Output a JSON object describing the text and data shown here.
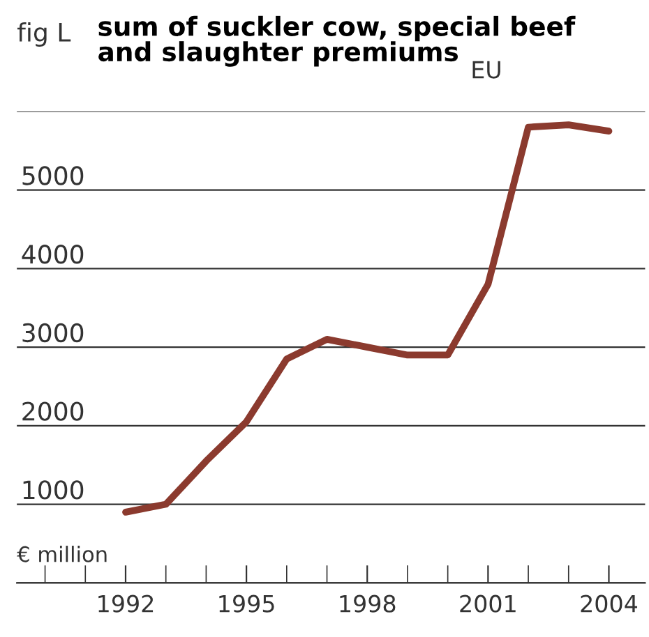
{
  "chart_data": {
    "type": "line",
    "title": "sum of suckler cow, special beef\nand slaughter premiums",
    "subtitle": "EU",
    "ylabel": "€ million",
    "annotations": [
      "fig L"
    ],
    "x": [
      1992,
      1993,
      1994,
      1995,
      1996,
      1997,
      1998,
      1999,
      2000,
      2001,
      2002,
      2003,
      2004
    ],
    "series": [
      {
        "color": "#8b3a2e",
        "values": [
          900,
          1000,
          1550,
          2050,
          2850,
          3100,
          3000,
          2900,
          2900,
          3800,
          5800,
          5830,
          5750
        ]
      }
    ],
    "xlim": [
      1989.3,
      2004.9
    ],
    "xticks": [
      {
        "value": 1990,
        "label": null
      },
      {
        "value": 1991,
        "label": null
      },
      1992,
      {
        "value": 1993,
        "label": null
      },
      {
        "value": 1994,
        "label": null
      },
      1995,
      {
        "value": 1996,
        "label": null
      },
      {
        "value": 1997,
        "label": null
      },
      1998,
      {
        "value": 1999,
        "label": null
      },
      {
        "value": 2000,
        "label": null
      },
      2001,
      {
        "value": 2002,
        "label": null
      },
      {
        "value": 2003,
        "label": null
      },
      2004
    ],
    "ylim": [
      0,
      6000
    ],
    "yticks": [
      {
        "value": 0,
        "label": null
      },
      1000,
      2000,
      3000,
      4000,
      5000,
      {
        "value": 6000,
        "label": null
      }
    ],
    "grid": "y",
    "legend": false,
    "marker": "none",
    "line_style": "solid"
  }
}
